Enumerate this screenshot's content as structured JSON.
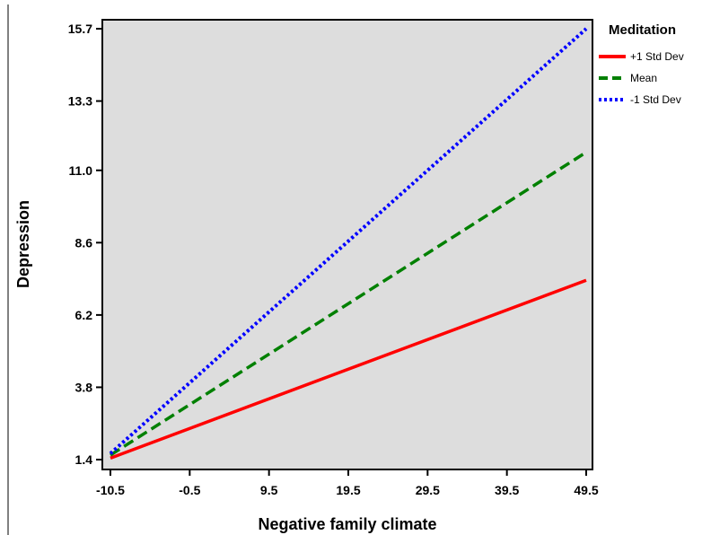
{
  "chart_data": {
    "type": "line",
    "xlabel": "Negative family climate",
    "ylabel": "Depression",
    "x": [
      -10.5,
      49.5
    ],
    "xticks": [
      "-10.5",
      "-0.5",
      "9.5",
      "19.5",
      "29.5",
      "39.5",
      "49.5"
    ],
    "yticks": [
      "1.4",
      "3.8",
      "6.2",
      "8.6",
      "11.0",
      "13.3",
      "15.7"
    ],
    "xlim": [
      -10.5,
      49.5
    ],
    "ylim": [
      1.4,
      15.7
    ],
    "grid": false,
    "legend": {
      "title": "Meditation",
      "placement": "right",
      "entries": [
        "+1 Std Dev",
        "Mean",
        "-1 Std Dev"
      ]
    },
    "series": [
      {
        "name": "+1 Std Dev",
        "values": [
          1.45,
          7.35
        ],
        "color": "#ff0000",
        "style": "solid"
      },
      {
        "name": "Mean",
        "values": [
          1.55,
          11.6
        ],
        "color": "#008000",
        "style": "dashed"
      },
      {
        "name": "-1 Std Dev",
        "values": [
          1.6,
          15.7
        ],
        "color": "#0000ff",
        "style": "dotted"
      }
    ],
    "plot_background": "#dddddd"
  }
}
